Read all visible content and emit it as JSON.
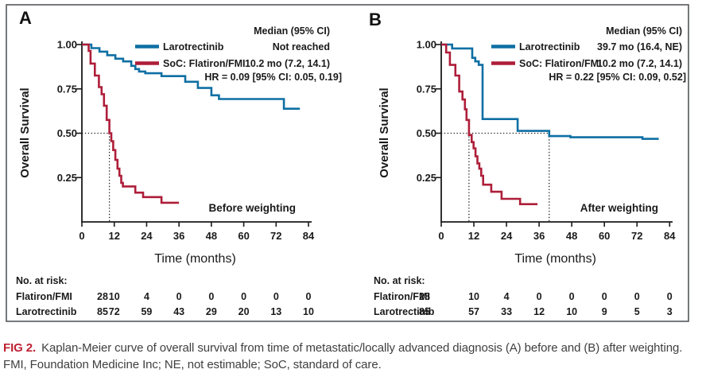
{
  "figure": {
    "caption": {
      "label": "FIG 2.",
      "text": "Kaplan-Meier curve of overall survival from time of metastatic/locally advanced diagnosis (A) before and (B) after weighting. FMI, Foundation Medicine Inc; NE, not estimable; SoC, standard of care."
    },
    "colors": {
      "larotrectinib": "#0E6FA3",
      "soc": "#AE1E39",
      "caption_label": "#BE2132",
      "border": "#54565A",
      "text": "#1A1A1A"
    }
  },
  "chart_data": [
    {
      "type": "line",
      "panel": "A",
      "weighting_label": "Before weighting",
      "xlabel": "Time (months)",
      "ylabel": "Overall Survival",
      "xticks": [
        0,
        12,
        24,
        36,
        48,
        60,
        72,
        84
      ],
      "yticks": [
        1.0,
        0.75,
        0.5,
        0.25
      ],
      "ytick_labels": [
        "1.00",
        "0.75",
        "0.50",
        "0.25"
      ],
      "xlim": [
        0,
        86
      ],
      "ylim": [
        0,
        1
      ],
      "legend_header": "Median (95% CI)",
      "hr_text": "HR = 0.09 [95% CI: 0.05, 0.19]",
      "median_lines": {
        "survival": 0.5,
        "times": [
          10.2
        ]
      },
      "series": [
        {
          "name": "Larotrectinib",
          "median": "Not reached",
          "color_key": "larotrectinib",
          "steps": [
            [
              0,
              1
            ],
            [
              3.5,
              1
            ],
            [
              3.5,
              0.98
            ],
            [
              6.5,
              0.98
            ],
            [
              6.5,
              0.96
            ],
            [
              9.4,
              0.96
            ],
            [
              9.4,
              0.94
            ],
            [
              12.4,
              0.94
            ],
            [
              12.4,
              0.92
            ],
            [
              15.3,
              0.92
            ],
            [
              15.3,
              0.905
            ],
            [
              18.3,
              0.905
            ],
            [
              18.3,
              0.88
            ],
            [
              19.8,
              0.88
            ],
            [
              19.8,
              0.862
            ],
            [
              21.2,
              0.862
            ],
            [
              21.2,
              0.848
            ],
            [
              23.5,
              0.848
            ],
            [
              23.5,
              0.838
            ],
            [
              29.5,
              0.838
            ],
            [
              29.5,
              0.822
            ],
            [
              38.3,
              0.822
            ],
            [
              38.3,
              0.79
            ],
            [
              43,
              0.79
            ],
            [
              43,
              0.755
            ],
            [
              48,
              0.755
            ],
            [
              48,
              0.714
            ],
            [
              50.8,
              0.714
            ],
            [
              50.8,
              0.693
            ],
            [
              74.9,
              0.693
            ],
            [
              74.9,
              0.638
            ],
            [
              80.8,
              0.638
            ]
          ]
        },
        {
          "name": "SoC: Flatiron/FMI",
          "median": "10.2 mo (7.2, 14.1)",
          "color_key": "soc",
          "steps": [
            [
              0,
              1
            ],
            [
              2.5,
              1
            ],
            [
              2.5,
              0.964
            ],
            [
              3.2,
              0.964
            ],
            [
              3.2,
              0.893
            ],
            [
              4.8,
              0.893
            ],
            [
              4.8,
              0.825
            ],
            [
              6.3,
              0.825
            ],
            [
              6.3,
              0.76
            ],
            [
              7.3,
              0.76
            ],
            [
              7.3,
              0.72
            ],
            [
              8.2,
              0.72
            ],
            [
              8.2,
              0.655
            ],
            [
              9.2,
              0.655
            ],
            [
              9.2,
              0.575
            ],
            [
              10.2,
              0.575
            ],
            [
              10.2,
              0.5
            ],
            [
              10.9,
              0.5
            ],
            [
              10.9,
              0.455
            ],
            [
              11.6,
              0.455
            ],
            [
              11.6,
              0.405
            ],
            [
              12.4,
              0.405
            ],
            [
              12.4,
              0.35
            ],
            [
              13.2,
              0.35
            ],
            [
              13.2,
              0.3
            ],
            [
              13.9,
              0.3
            ],
            [
              13.9,
              0.26
            ],
            [
              14.6,
              0.26
            ],
            [
              14.6,
              0.22
            ],
            [
              15.2,
              0.22
            ],
            [
              15.2,
              0.2
            ],
            [
              19.8,
              0.2
            ],
            [
              19.8,
              0.165
            ],
            [
              22.7,
              0.165
            ],
            [
              22.7,
              0.14
            ],
            [
              29.5,
              0.14
            ],
            [
              29.5,
              0.108
            ],
            [
              36,
              0.108
            ]
          ]
        }
      ],
      "risk_table": {
        "title": "No. at risk:",
        "rows": [
          {
            "label": "Flatiron/FMI",
            "counts": [
              28,
              10,
              4,
              0,
              0,
              0,
              0,
              0
            ]
          },
          {
            "label": "Larotrectinib",
            "counts": [
              85,
              72,
              59,
              43,
              29,
              20,
              13,
              10
            ]
          }
        ]
      }
    },
    {
      "type": "line",
      "panel": "B",
      "weighting_label": "After weighting",
      "xlabel": "Time (months)",
      "ylabel": "Overall Survival",
      "xticks": [
        0,
        12,
        24,
        36,
        48,
        60,
        72,
        84
      ],
      "yticks": [
        1.0,
        0.75,
        0.5,
        0.25
      ],
      "ytick_labels": [
        "1.00",
        "0.75",
        "0.50",
        "0.25"
      ],
      "xlim": [
        0,
        86
      ],
      "ylim": [
        0,
        1
      ],
      "legend_header": "Median (95% CI)",
      "hr_text": "HR = 0.22 [95% CI: 0.09, 0.52]",
      "median_lines": {
        "survival": 0.5,
        "times": [
          10.2,
          39.7
        ]
      },
      "series": [
        {
          "name": "Larotrectinib",
          "median": "39.7 mo (16.4, NE)",
          "color_key": "larotrectinib",
          "steps": [
            [
              0,
              1
            ],
            [
              4,
              1
            ],
            [
              4,
              0.978
            ],
            [
              11.4,
              0.978
            ],
            [
              11.4,
              0.925
            ],
            [
              12.5,
              0.925
            ],
            [
              12.5,
              0.905
            ],
            [
              13.8,
              0.905
            ],
            [
              13.8,
              0.885
            ],
            [
              15.2,
              0.885
            ],
            [
              15.2,
              0.58
            ],
            [
              28.1,
              0.58
            ],
            [
              28.1,
              0.513
            ],
            [
              39.7,
              0.513
            ],
            [
              39.7,
              0.484
            ],
            [
              47.5,
              0.484
            ],
            [
              47.5,
              0.477
            ],
            [
              74,
              0.477
            ],
            [
              74,
              0.468
            ],
            [
              80,
              0.468
            ]
          ]
        },
        {
          "name": "SoC: Flatiron/FMI",
          "median": "10.2 mo (7.2, 14.1)",
          "color_key": "soc",
          "steps": [
            [
              0,
              1
            ],
            [
              1.8,
              1
            ],
            [
              1.8,
              0.955
            ],
            [
              3.2,
              0.955
            ],
            [
              3.2,
              0.885
            ],
            [
              5.2,
              0.885
            ],
            [
              5.2,
              0.825
            ],
            [
              6.6,
              0.825
            ],
            [
              6.6,
              0.735
            ],
            [
              7.8,
              0.735
            ],
            [
              7.8,
              0.69
            ],
            [
              8.7,
              0.69
            ],
            [
              8.7,
              0.635
            ],
            [
              9.3,
              0.635
            ],
            [
              9.3,
              0.575
            ],
            [
              10.2,
              0.575
            ],
            [
              10.2,
              0.49
            ],
            [
              11.2,
              0.49
            ],
            [
              11.2,
              0.45
            ],
            [
              11.9,
              0.45
            ],
            [
              11.9,
              0.415
            ],
            [
              12.6,
              0.415
            ],
            [
              12.6,
              0.37
            ],
            [
              13.3,
              0.37
            ],
            [
              13.3,
              0.33
            ],
            [
              14,
              0.33
            ],
            [
              14,
              0.3
            ],
            [
              14.7,
              0.3
            ],
            [
              14.7,
              0.26
            ],
            [
              15.4,
              0.26
            ],
            [
              15.4,
              0.21
            ],
            [
              18.4,
              0.21
            ],
            [
              18.4,
              0.17
            ],
            [
              22.2,
              0.17
            ],
            [
              22.2,
              0.13
            ],
            [
              29,
              0.13
            ],
            [
              29,
              0.1
            ],
            [
              35.4,
              0.1
            ]
          ]
        }
      ],
      "risk_table": {
        "title": "No. at risk:",
        "rows": [
          {
            "label": "Flatiron/FMI",
            "counts": [
              28,
              10,
              4,
              0,
              0,
              0,
              0,
              0
            ]
          },
          {
            "label": "Larotrectinib",
            "counts": [
              85,
              57,
              33,
              12,
              10,
              9,
              5,
              3
            ]
          }
        ]
      }
    }
  ]
}
